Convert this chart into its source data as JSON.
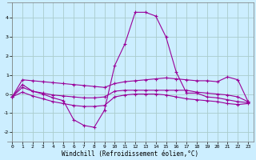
{
  "background_color": "#cceeff",
  "grid_color": "#aacccc",
  "line_color": "#990099",
  "xlabel": "Windchill (Refroidissement éolien,°C)",
  "xlim": [
    -0.5,
    23.5
  ],
  "ylim": [
    -2.5,
    4.8
  ],
  "yticks": [
    -2,
    -1,
    0,
    1,
    2,
    3,
    4
  ],
  "xticks": [
    0,
    1,
    2,
    3,
    4,
    5,
    6,
    7,
    8,
    9,
    10,
    11,
    12,
    13,
    14,
    15,
    16,
    17,
    18,
    19,
    20,
    21,
    22,
    23
  ],
  "lines": [
    {
      "x": [
        0,
        1,
        2,
        3,
        4,
        5,
        6,
        7,
        8,
        9,
        10,
        11,
        12,
        13,
        14,
        15,
        16,
        17,
        18,
        19,
        20,
        21,
        22,
        23
      ],
      "y": [
        -0.15,
        0.5,
        0.15,
        0.0,
        -0.2,
        -0.35,
        -1.35,
        -1.65,
        -1.75,
        -0.85,
        1.5,
        2.65,
        4.3,
        4.3,
        4.1,
        3.0,
        1.15,
        0.05,
        0.05,
        -0.15,
        -0.2,
        -0.3,
        -0.4,
        -0.45
      ]
    },
    {
      "x": [
        0,
        1,
        2,
        3,
        4,
        5,
        6,
        7,
        8,
        9,
        10,
        11,
        12,
        13,
        14,
        15,
        16,
        17,
        18,
        19,
        20,
        21,
        22,
        23
      ],
      "y": [
        -0.15,
        0.75,
        0.7,
        0.65,
        0.6,
        0.55,
        0.5,
        0.45,
        0.4,
        0.35,
        0.55,
        0.65,
        0.7,
        0.75,
        0.8,
        0.85,
        0.8,
        0.75,
        0.7,
        0.7,
        0.65,
        0.9,
        0.75,
        -0.4
      ]
    },
    {
      "x": [
        0,
        1,
        2,
        3,
        4,
        5,
        6,
        7,
        8,
        9,
        10,
        11,
        12,
        13,
        14,
        15,
        16,
        17,
        18,
        19,
        20,
        21,
        22,
        23
      ],
      "y": [
        -0.15,
        0.35,
        0.15,
        0.05,
        -0.05,
        -0.1,
        -0.15,
        -0.2,
        -0.2,
        -0.15,
        0.15,
        0.2,
        0.2,
        0.2,
        0.2,
        0.2,
        0.2,
        0.2,
        0.1,
        0.05,
        0.0,
        -0.05,
        -0.15,
        -0.4
      ]
    },
    {
      "x": [
        0,
        1,
        2,
        3,
        4,
        5,
        6,
        7,
        8,
        9,
        10,
        11,
        12,
        13,
        14,
        15,
        16,
        17,
        18,
        19,
        20,
        21,
        22,
        23
      ],
      "y": [
        -0.15,
        0.1,
        -0.1,
        -0.25,
        -0.4,
        -0.5,
        -0.6,
        -0.65,
        -0.65,
        -0.6,
        -0.15,
        -0.05,
        0.0,
        0.0,
        0.0,
        -0.05,
        -0.15,
        -0.25,
        -0.3,
        -0.35,
        -0.4,
        -0.5,
        -0.55,
        -0.5
      ]
    }
  ]
}
